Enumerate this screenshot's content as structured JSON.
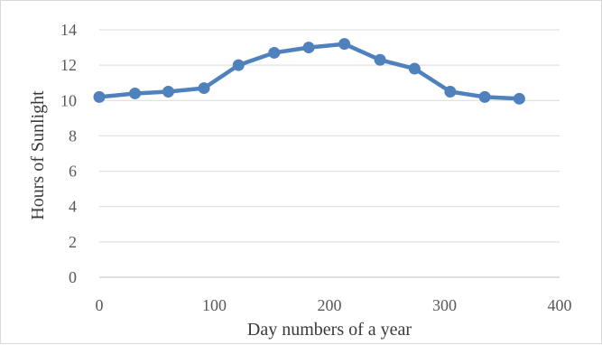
{
  "chart_data": {
    "type": "line",
    "title": "",
    "xlabel": "Day numbers of a year",
    "ylabel": "Hours of Sunlight",
    "xlim": [
      0,
      400
    ],
    "ylim": [
      0,
      14
    ],
    "xticks": [
      0,
      100,
      200,
      300,
      400
    ],
    "yticks": [
      0,
      2,
      4,
      6,
      8,
      10,
      12,
      14
    ],
    "grid": "horizontal",
    "legend": "none",
    "series": [
      {
        "color": "#4f81bd",
        "marker": "circle",
        "points": [
          {
            "x": 0,
            "y": 10.2
          },
          {
            "x": 31,
            "y": 10.4
          },
          {
            "x": 60,
            "y": 10.5
          },
          {
            "x": 91,
            "y": 10.7
          },
          {
            "x": 121,
            "y": 12.0
          },
          {
            "x": 152,
            "y": 12.7
          },
          {
            "x": 182,
            "y": 13.0
          },
          {
            "x": 213,
            "y": 13.2
          },
          {
            "x": 244,
            "y": 12.3
          },
          {
            "x": 274,
            "y": 11.8
          },
          {
            "x": 305,
            "y": 10.5
          },
          {
            "x": 335,
            "y": 10.2
          },
          {
            "x": 365,
            "y": 10.1
          }
        ]
      }
    ]
  }
}
